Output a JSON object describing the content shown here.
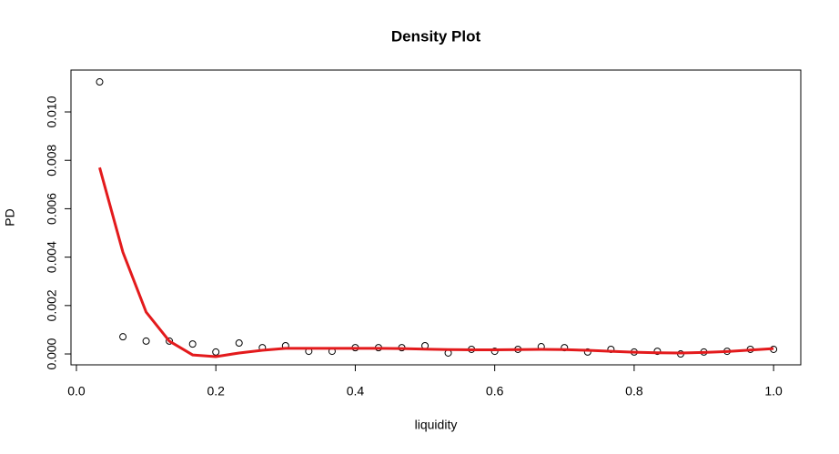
{
  "chart_data": {
    "type": "scatter",
    "title": "Density Plot",
    "x_label": "liquidity",
    "y_label": "PD",
    "x": [
      0.0333,
      0.0667,
      0.1,
      0.1333,
      0.1667,
      0.2,
      0.2333,
      0.2667,
      0.3,
      0.3333,
      0.3667,
      0.4,
      0.4333,
      0.4667,
      0.5,
      0.5333,
      0.5667,
      0.6,
      0.6333,
      0.6667,
      0.7,
      0.7333,
      0.7667,
      0.8,
      0.8333,
      0.8667,
      0.9,
      0.9333,
      0.9667,
      1.0
    ],
    "series": [
      {
        "type": "points",
        "color": "#000000",
        "values": [
          0.01124,
          0.00071,
          0.00053,
          0.00053,
          0.00041,
          8e-05,
          0.00045,
          0.00026,
          0.00034,
          0.00011,
          0.00011,
          0.00026,
          0.00026,
          0.00026,
          0.00034,
          4e-05,
          0.00019,
          0.00011,
          0.00019,
          0.0003,
          0.00026,
          8e-05,
          0.00019,
          8e-05,
          0.00011,
          0.0,
          8e-05,
          0.00011,
          0.00019,
          0.00019
        ]
      },
      {
        "type": "line",
        "color": "#e31a1c",
        "values": [
          0.0077,
          0.0042,
          0.00173,
          0.00053,
          -4e-05,
          -0.00011,
          4e-05,
          0.00015,
          0.00023,
          0.00023,
          0.00023,
          0.00023,
          0.00023,
          0.00022,
          0.0002,
          0.00018,
          0.00017,
          0.00017,
          0.00018,
          0.00019,
          0.00018,
          0.00015,
          0.00011,
          7e-05,
          5e-05,
          4e-05,
          6e-05,
          0.0001,
          0.00016,
          0.00022
        ]
      }
    ],
    "xlim": [
      -0.0078,
      1.039
    ],
    "ylim": [
      -0.00045,
      0.01173
    ],
    "xticks": [
      {
        "value": 0,
        "label": "0.0"
      },
      0.2,
      0.4,
      0.6,
      0.8,
      {
        "value": 1,
        "label": "1.0"
      }
    ],
    "yticks": [
      {
        "value": 0,
        "label": "0.000"
      },
      0.002,
      0.004,
      0.006,
      0.008,
      {
        "value": 0.01,
        "label": "0.010"
      }
    ]
  }
}
